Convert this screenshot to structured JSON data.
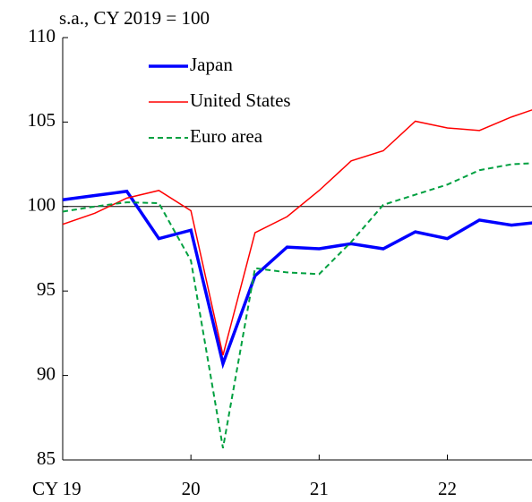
{
  "chart_data": {
    "type": "line",
    "unit_label": "s.a., CY 2019 = 100",
    "x": [
      2019,
      2019.25,
      2019.5,
      2019.75,
      2020,
      2020.25,
      2020.5,
      2020.75,
      2021,
      2021.25,
      2021.5,
      2021.75,
      2022,
      2022.25,
      2022.5,
      2022.75
    ],
    "series": [
      {
        "name": "Japan",
        "color": "#0000ff",
        "width": 3.5,
        "dash": "none",
        "values": [
          100.4,
          100.65,
          100.9,
          98.1,
          98.6,
          90.7,
          95.9,
          97.6,
          97.5,
          97.8,
          97.5,
          98.5,
          98.1,
          99.2,
          98.9,
          99.1
        ]
      },
      {
        "name": "United States",
        "color": "#ff0000",
        "width": 1.5,
        "dash": "none",
        "values": [
          98.95,
          99.6,
          100.5,
          100.95,
          99.75,
          91.2,
          98.45,
          99.4,
          100.95,
          102.7,
          103.3,
          105.05,
          104.65,
          104.5,
          105.3,
          105.95
        ]
      },
      {
        "name": "Euro area",
        "color": "#00a040",
        "width": 2,
        "dash": "6 4",
        "values": [
          99.7,
          100.0,
          100.25,
          100.2,
          96.8,
          85.7,
          96.35,
          96.1,
          96.0,
          97.9,
          100.1,
          100.7,
          101.3,
          102.15,
          102.5,
          102.6
        ]
      }
    ],
    "reference_line": 100,
    "xlim": [
      2019,
      2022.66
    ],
    "xticks": [
      {
        "value": 2019,
        "label": "CY 19"
      },
      {
        "value": 2020,
        "label": "20"
      },
      {
        "value": 2021,
        "label": "21"
      },
      {
        "value": 2022,
        "label": "22"
      }
    ],
    "ylim": [
      85,
      110
    ],
    "yticks": [
      85,
      90,
      95,
      100,
      105,
      110
    ]
  }
}
